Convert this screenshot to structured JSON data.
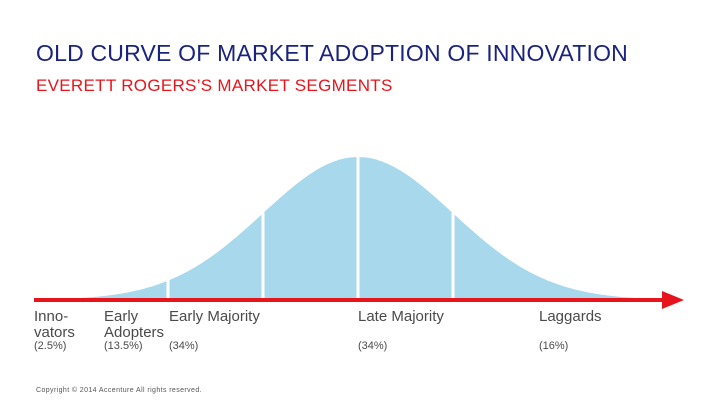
{
  "title": "OLD CURVE OF MARKET ADOPTION OF INNOVATION",
  "subtitle": "EVERETT ROGERS’S MARKET SEGMENTS",
  "colors": {
    "curve": "#a8d8ec",
    "axis": "#e8141b",
    "title": "#1a237e",
    "subtitle": "#e8141b"
  },
  "chart_data": {
    "type": "area",
    "title": "OLD CURVE OF MARKET ADOPTION OF INNOVATION",
    "subtitle": "EVERETT ROGERS’S MARKET SEGMENTS",
    "distribution": "normal",
    "x_range_sd": [
      -3.0,
      3.2
    ],
    "boundaries_sd": [
      -2,
      -1,
      0,
      1
    ],
    "segments": [
      {
        "label_lines": [
          "Inno-",
          "vators"
        ],
        "percent_label": "(2.5%)",
        "value": 2.5
      },
      {
        "label_lines": [
          "Early",
          "Adopters"
        ],
        "percent_label": "(13.5%)",
        "value": 13.5
      },
      {
        "label_lines": [
          "Early Majority"
        ],
        "percent_label": "(34%)",
        "value": 34
      },
      {
        "label_lines": [
          "Late Majority"
        ],
        "percent_label": "(34%)",
        "value": 34
      },
      {
        "label_lines": [
          "Laggards"
        ],
        "percent_label": "(16%)",
        "value": 16
      }
    ],
    "grid": false
  },
  "footer": {
    "copyright": "Copyright © 2014 Accenture All rights reserved."
  }
}
